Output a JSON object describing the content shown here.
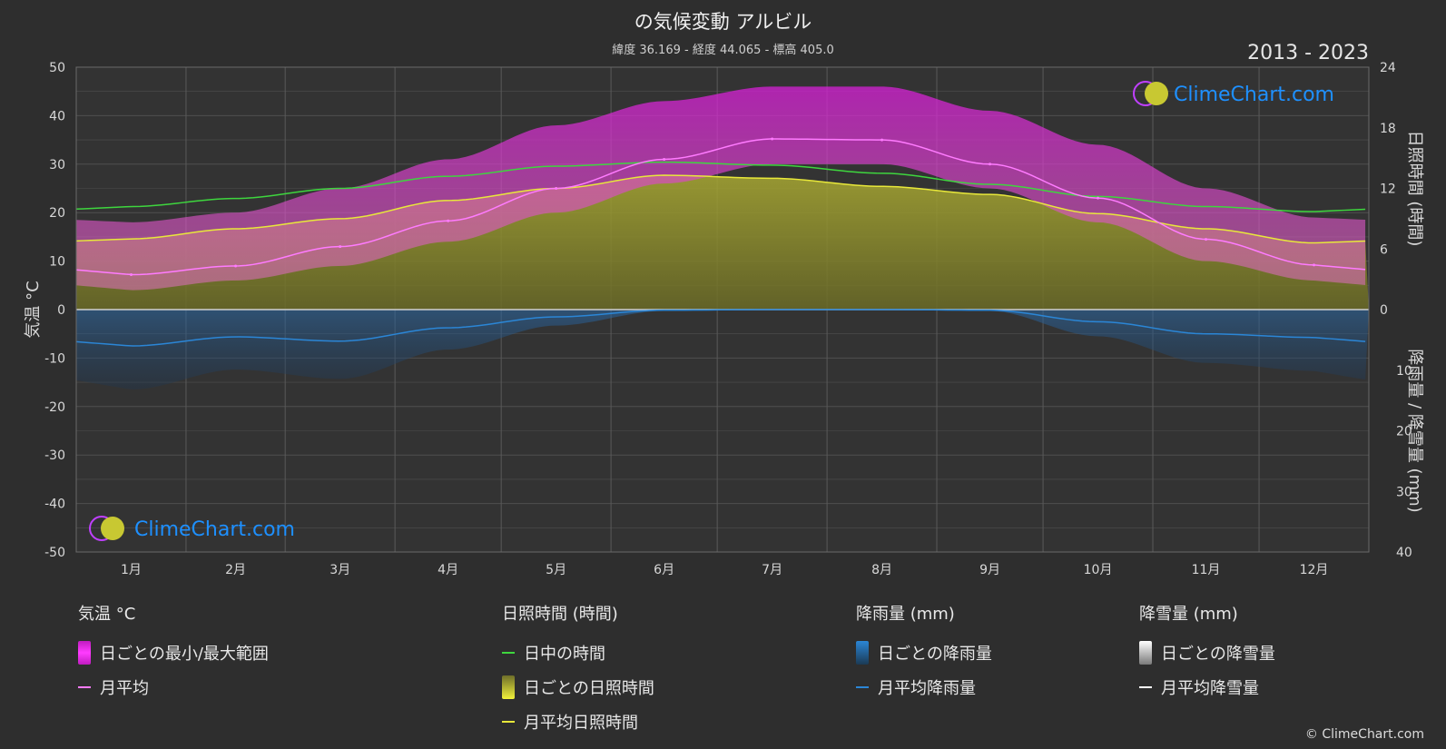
{
  "header": {
    "title": "の気候変動 アルビル",
    "subtitle": "緯度 36.169 - 経度 44.065 - 標高 405.0",
    "years": "2013 - 2023"
  },
  "watermark": {
    "text": "ClimeChart.com"
  },
  "copyright": "© ClimeChart.com",
  "colors": {
    "background": "#2e2e2e",
    "temp_range": "#d81fd8",
    "temp_avg": "#ff7bff",
    "daylight": "#3ed63e",
    "sunshine_fill": "#9c9c2e",
    "sunshine_avg": "#e8e83a",
    "rain": "#2b86d6",
    "rain_avg": "#2b86d6",
    "snow_avg": "#ffffff",
    "brand": "#1e90ff"
  },
  "chart_data": {
    "type": "area",
    "categories": [
      "1月",
      "2月",
      "3月",
      "4月",
      "5月",
      "6月",
      "7月",
      "8月",
      "9月",
      "10月",
      "11月",
      "12月"
    ],
    "left_axis": {
      "label": "気温 °C",
      "ylim": [
        -50,
        50
      ],
      "ticks": [
        50,
        40,
        30,
        20,
        10,
        0,
        -10,
        -20,
        -30,
        -40,
        -50
      ]
    },
    "right_axis_top": {
      "label": "日照時間 (時間)",
      "ylim": [
        0,
        24
      ],
      "ticks": [
        24,
        18,
        12,
        6,
        0
      ]
    },
    "right_axis_bottom": {
      "label": "降雨量 / 降雪量 (mm)",
      "ylim": [
        0,
        40
      ],
      "ticks": [
        0,
        10,
        20,
        30,
        40
      ]
    },
    "grid": true,
    "series": [
      {
        "name": "月平均",
        "unit": "°C",
        "values": [
          7.2,
          9.0,
          13.0,
          18.3,
          25.0,
          31.0,
          35.2,
          35.0,
          30.0,
          23.0,
          14.5,
          9.2
        ]
      },
      {
        "name": "日ごとの最小/最大範囲",
        "unit": "°C",
        "min": [
          4,
          6,
          9,
          14,
          20,
          26,
          30,
          30,
          25,
          18,
          10,
          6
        ],
        "max": [
          18,
          20,
          25,
          31,
          38,
          43,
          46,
          46,
          41,
          34,
          25,
          19
        ]
      },
      {
        "name": "日中の時間",
        "unit": "時間",
        "values": [
          10.2,
          11.0,
          12.0,
          13.2,
          14.2,
          14.6,
          14.3,
          13.5,
          12.4,
          11.2,
          10.2,
          9.7
        ]
      },
      {
        "name": "月平均日照時間",
        "unit": "時間",
        "values": [
          7.0,
          8.0,
          9.0,
          10.8,
          12.0,
          13.3,
          13.0,
          12.2,
          11.4,
          9.5,
          8.0,
          6.6
        ]
      },
      {
        "name": "月平均降雨量",
        "unit": "mm",
        "values": [
          6.0,
          4.5,
          5.2,
          3.0,
          1.2,
          0.1,
          0.0,
          0.0,
          0.1,
          2.0,
          4.0,
          4.6
        ]
      },
      {
        "name": "月平均降雪量",
        "unit": "mm",
        "values": [
          0,
          0,
          0,
          0,
          0,
          0,
          0,
          0,
          0,
          0,
          0,
          0
        ]
      }
    ]
  },
  "legend": {
    "temp": {
      "title": "気温 °C",
      "range": "日ごとの最小/最大範囲",
      "avg": "月平均"
    },
    "sun": {
      "title": "日照時間 (時間)",
      "daylight": "日中の時間",
      "daily": "日ごとの日照時間",
      "avg": "月平均日照時間"
    },
    "rain": {
      "title": "降雨量 (mm)",
      "daily": "日ごとの降雨量",
      "avg": "月平均降雨量"
    },
    "snow": {
      "title": "降雪量 (mm)",
      "daily": "日ごとの降雪量",
      "avg": "月平均降雪量"
    }
  }
}
